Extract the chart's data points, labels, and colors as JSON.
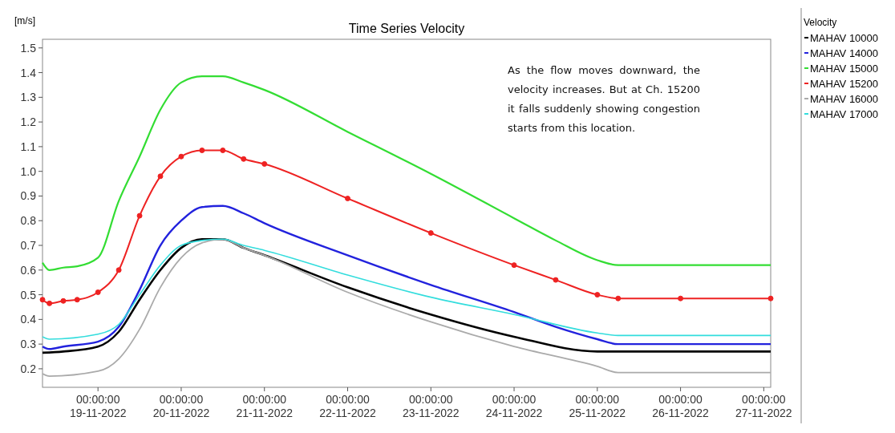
{
  "chart_data": {
    "type": "line",
    "title": "Time Series Velocity",
    "ylabel": "[m/s]",
    "legend_title": "Velocity",
    "legend": "right",
    "grid": false,
    "line_style": "solid",
    "xlim": [
      "2022-11-18T08:00",
      "2022-11-27T02:00"
    ],
    "xticks": [
      {
        "value": "2022-11-19T00:00",
        "label": "00:00:00\n19-11-2022"
      },
      {
        "value": "2022-11-20T00:00",
        "label": "00:00:00\n20-11-2022"
      },
      {
        "value": "2022-11-21T00:00",
        "label": "00:00:00\n21-11-2022"
      },
      {
        "value": "2022-11-22T00:00",
        "label": "00:00:00\n22-11-2022"
      },
      {
        "value": "2022-11-23T00:00",
        "label": "00:00:00\n23-11-2022"
      },
      {
        "value": "2022-11-24T00:00",
        "label": "00:00:00\n24-11-2022"
      },
      {
        "value": "2022-11-25T00:00",
        "label": "00:00:00\n25-11-2022"
      },
      {
        "value": "2022-11-26T00:00",
        "label": "00:00:00\n26-11-2022"
      },
      {
        "value": "2022-11-27T00:00",
        "label": "00:00:00\n27-11-2022"
      }
    ],
    "ylim": [
      0.125,
      1.535
    ],
    "yticks": [
      {
        "value": 0.2,
        "label": "0.2"
      },
      {
        "value": 0.3,
        "label": "0.3"
      },
      {
        "value": 0.4,
        "label": "0.4"
      },
      {
        "value": 0.5,
        "label": "0.5"
      },
      {
        "value": 0.6,
        "label": "0.6"
      },
      {
        "value": 0.7,
        "label": "0.7"
      },
      {
        "value": 0.8,
        "label": "0.8"
      },
      {
        "value": 0.9,
        "label": "0.9"
      },
      {
        "value": 1.0,
        "label": "1.0"
      },
      {
        "value": 1.1,
        "label": "1.1"
      },
      {
        "value": 1.2,
        "label": "1.2"
      },
      {
        "value": 1.3,
        "label": "1.3"
      },
      {
        "value": 1.4,
        "label": "1.4"
      },
      {
        "value": 1.5,
        "label": "1.5"
      }
    ],
    "annotations": [
      "As the flow moves downward, the velocity increases. But at Ch. 15200 it falls suddenly showing congestion starts from this location."
    ],
    "series": [
      {
        "name": "MAHAV 10000",
        "color": "#000000",
        "marker": "none",
        "x": [
          "2022-11-18T08:00",
          "2022-11-18T14:00",
          "2022-11-19T00:00",
          "2022-11-19T06:00",
          "2022-11-19T12:00",
          "2022-11-19T18:00",
          "2022-11-20T00:00",
          "2022-11-20T06:00",
          "2022-11-20T12:00",
          "2022-11-20T18:00",
          "2022-11-21T00:00",
          "2022-11-22T00:00",
          "2022-11-23T00:00",
          "2022-11-24T00:00",
          "2022-11-25T00:00",
          "2022-11-27T02:00"
        ],
        "values": [
          0.265,
          0.27,
          0.29,
          0.35,
          0.48,
          0.6,
          0.69,
          0.725,
          0.725,
          0.69,
          0.66,
          0.53,
          0.42,
          0.33,
          0.27,
          0.27
        ]
      },
      {
        "name": "MAHAV 14000",
        "color": "#2222dd",
        "marker": "none",
        "x": [
          "2022-11-18T08:00",
          "2022-11-18T10:00",
          "2022-11-18T14:00",
          "2022-11-19T00:00",
          "2022-11-19T06:00",
          "2022-11-19T12:00",
          "2022-11-19T18:00",
          "2022-11-20T00:00",
          "2022-11-20T06:00",
          "2022-11-20T12:00",
          "2022-11-20T18:00",
          "2022-11-21T00:00",
          "2022-11-22T00:00",
          "2022-11-23T00:00",
          "2022-11-24T00:00",
          "2022-11-24T12:00",
          "2022-11-25T00:00",
          "2022-11-25T06:00",
          "2022-11-27T02:00"
        ],
        "values": [
          0.29,
          0.28,
          0.29,
          0.31,
          0.37,
          0.52,
          0.7,
          0.8,
          0.855,
          0.86,
          0.83,
          0.79,
          0.66,
          0.54,
          0.43,
          0.37,
          0.32,
          0.3,
          0.3
        ]
      },
      {
        "name": "MAHAV 15000",
        "color": "#33dd33",
        "marker": "none",
        "x": [
          "2022-11-18T08:00",
          "2022-11-18T10:00",
          "2022-11-18T14:00",
          "2022-11-18T18:00",
          "2022-11-19T00:00",
          "2022-11-19T06:00",
          "2022-11-19T12:00",
          "2022-11-19T18:00",
          "2022-11-20T00:00",
          "2022-11-20T06:00",
          "2022-11-20T12:00",
          "2022-11-20T18:00",
          "2022-11-21T00:00",
          "2022-11-22T00:00",
          "2022-11-23T00:00",
          "2022-11-24T00:00",
          "2022-11-24T12:00",
          "2022-11-25T00:00",
          "2022-11-25T06:00",
          "2022-11-27T02:00"
        ],
        "values": [
          0.63,
          0.6,
          0.61,
          0.615,
          0.65,
          0.88,
          1.06,
          1.25,
          1.36,
          1.385,
          1.385,
          1.36,
          1.33,
          1.16,
          0.99,
          0.81,
          0.72,
          0.64,
          0.62,
          0.62
        ]
      },
      {
        "name": "MAHAV 15200",
        "color": "#ee2222",
        "marker": "circle",
        "x": [
          "2022-11-18T08:00",
          "2022-11-18T10:00",
          "2022-11-18T14:00",
          "2022-11-18T18:00",
          "2022-11-19T00:00",
          "2022-11-19T06:00",
          "2022-11-19T12:00",
          "2022-11-19T18:00",
          "2022-11-20T00:00",
          "2022-11-20T06:00",
          "2022-11-20T12:00",
          "2022-11-20T18:00",
          "2022-11-21T00:00",
          "2022-11-22T00:00",
          "2022-11-23T00:00",
          "2022-11-24T00:00",
          "2022-11-24T12:00",
          "2022-11-25T00:00",
          "2022-11-25T06:00",
          "2022-11-26T00:00",
          "2022-11-27T02:00"
        ],
        "values": [
          0.48,
          0.465,
          0.475,
          0.48,
          0.51,
          0.6,
          0.82,
          0.98,
          1.06,
          1.085,
          1.085,
          1.05,
          1.03,
          0.89,
          0.75,
          0.62,
          0.56,
          0.5,
          0.485,
          0.485,
          0.485
        ]
      },
      {
        "name": "MAHAV 16000",
        "color": "#aaaaaa",
        "marker": "none",
        "x": [
          "2022-11-18T08:00",
          "2022-11-18T10:00",
          "2022-11-19T00:00",
          "2022-11-19T06:00",
          "2022-11-19T12:00",
          "2022-11-19T18:00",
          "2022-11-20T00:00",
          "2022-11-20T06:00",
          "2022-11-20T12:00",
          "2022-11-20T18:00",
          "2022-11-21T00:00",
          "2022-11-22T00:00",
          "2022-11-23T00:00",
          "2022-11-24T00:00",
          "2022-11-25T00:00",
          "2022-11-25T06:00",
          "2022-11-27T02:00"
        ],
        "values": [
          0.18,
          0.17,
          0.19,
          0.24,
          0.36,
          0.53,
          0.65,
          0.71,
          0.725,
          0.69,
          0.66,
          0.51,
          0.39,
          0.29,
          0.21,
          0.185,
          0.185
        ]
      },
      {
        "name": "MAHAV 17000",
        "color": "#33dddd",
        "marker": "none",
        "x": [
          "2022-11-18T08:00",
          "2022-11-18T10:00",
          "2022-11-19T00:00",
          "2022-11-19T06:00",
          "2022-11-19T12:00",
          "2022-11-19T18:00",
          "2022-11-20T00:00",
          "2022-11-20T06:00",
          "2022-11-20T12:00",
          "2022-11-20T18:00",
          "2022-11-21T00:00",
          "2022-11-22T00:00",
          "2022-11-23T00:00",
          "2022-11-24T00:00",
          "2022-11-25T00:00",
          "2022-11-25T06:00",
          "2022-11-27T02:00"
        ],
        "values": [
          0.33,
          0.32,
          0.34,
          0.38,
          0.5,
          0.62,
          0.7,
          0.72,
          0.725,
          0.7,
          0.68,
          0.58,
          0.49,
          0.42,
          0.345,
          0.335,
          0.335
        ]
      }
    ]
  }
}
